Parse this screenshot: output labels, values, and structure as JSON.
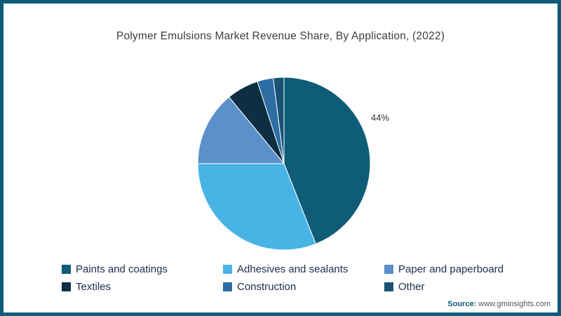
{
  "title": "Polymer Emulsions Market Revenue Share, By Application, (2022)",
  "chart_data": {
    "type": "pie",
    "title": "Polymer Emulsions Market Revenue Share, By Application, (2022)",
    "values_are_percent": true,
    "start_angle_deg": -90,
    "direction": "clockwise",
    "legend_position": "bottom",
    "segments": [
      {
        "label": "Paints and coatings",
        "value": 44,
        "color": "#0e5c78",
        "data_label": "44%"
      },
      {
        "label": "Adhesives and sealants",
        "value": 31,
        "color": "#47b4e4",
        "data_label": ""
      },
      {
        "label": "Paper and paperboard",
        "value": 14,
        "color": "#5c90cb",
        "data_label": ""
      },
      {
        "label": "Textiles",
        "value": 6,
        "color": "#0d2e43",
        "data_label": ""
      },
      {
        "label": "Construction",
        "value": 3,
        "color": "#2e6da4",
        "data_label": ""
      },
      {
        "label": "Other",
        "value": 2,
        "color": "#1a5276",
        "data_label": ""
      }
    ],
    "annotations": [
      "44%"
    ]
  },
  "source": {
    "prefix": "Source:",
    "text": "www.gminsights.com"
  },
  "frame_border_color": "#0e5c78"
}
